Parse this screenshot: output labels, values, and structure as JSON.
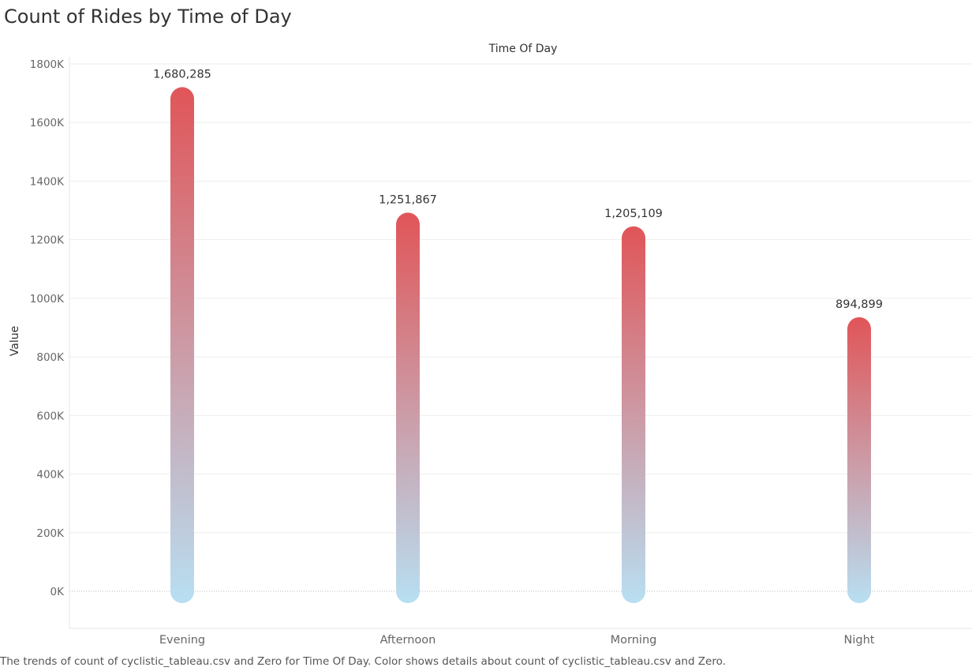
{
  "title": "Count of Rides by Time of Day",
  "caption": "The trends of count of cyclistic_tableau.csv and Zero for Time Of Day.  Color shows details about count of cyclistic_tableau.csv and Zero.",
  "colors": {
    "bar_top": "#e05558",
    "bar_bottom": "#b8dff2",
    "gridline": "#eeeeee",
    "axis_text": "#666666",
    "label_text": "#333333"
  },
  "chart_data": {
    "type": "bar",
    "xlabel": "Time Of Day",
    "ylabel": "Value",
    "categories": [
      "Evening",
      "Afternoon",
      "Morning",
      "Night"
    ],
    "values": [
      1680285,
      1251867,
      1205109,
      894899
    ],
    "data_labels": [
      "1,680,285",
      "1,251,867",
      "1,205,109",
      "894,899"
    ],
    "ylim": [
      0,
      1800000
    ],
    "yticks": [
      0,
      200000,
      400000,
      600000,
      800000,
      1000000,
      1200000,
      1400000,
      1600000,
      1800000
    ],
    "ytick_labels": [
      "0K",
      "200K",
      "400K",
      "600K",
      "800K",
      "1000K",
      "1200K",
      "1400K",
      "1600K",
      "1800K"
    ],
    "grid": true,
    "legend": "none"
  }
}
